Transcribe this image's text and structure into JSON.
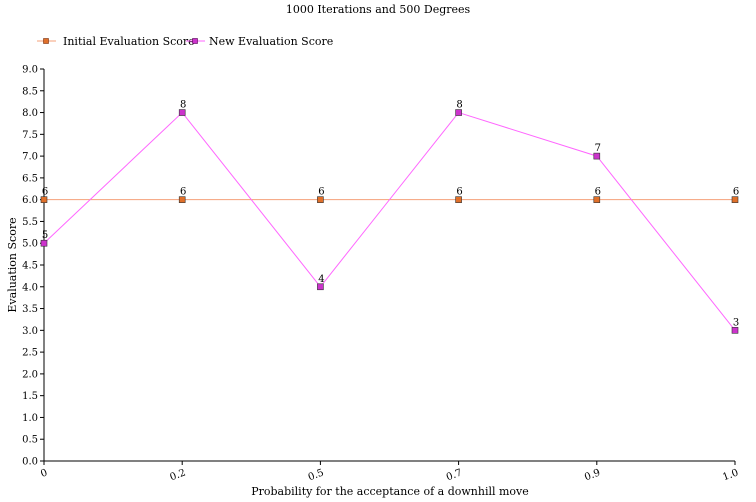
{
  "chart_data": {
    "type": "line",
    "title": "1000 Iterations and 500 Degrees",
    "xlabel": "Probability for the acceptance of a downhill move",
    "ylabel": "Evaluation Score",
    "categories": [
      "0",
      "0.2",
      "0.5",
      "0.7",
      "0.9",
      "1.0"
    ],
    "ylim": [
      0,
      9
    ],
    "yticks": [
      "0.0",
      "0.5",
      "1.0",
      "1.5",
      "2.0",
      "2.5",
      "3.0",
      "3.5",
      "4.0",
      "4.5",
      "5.0",
      "5.5",
      "6.0",
      "6.5",
      "7.0",
      "7.5",
      "8.0",
      "8.5",
      "9.0"
    ],
    "grid": false,
    "legend_position": "top-left",
    "series": [
      {
        "name": "Initial Evaluation Score",
        "values": [
          6,
          6,
          6,
          6,
          6,
          6
        ],
        "line_color": "#f4a07a",
        "marker_color": "#e0702a"
      },
      {
        "name": "New Evaluation Score",
        "values": [
          5,
          8,
          4,
          8,
          7,
          3
        ],
        "line_color": "#ff66ff",
        "marker_color": "#cc33cc"
      }
    ]
  }
}
